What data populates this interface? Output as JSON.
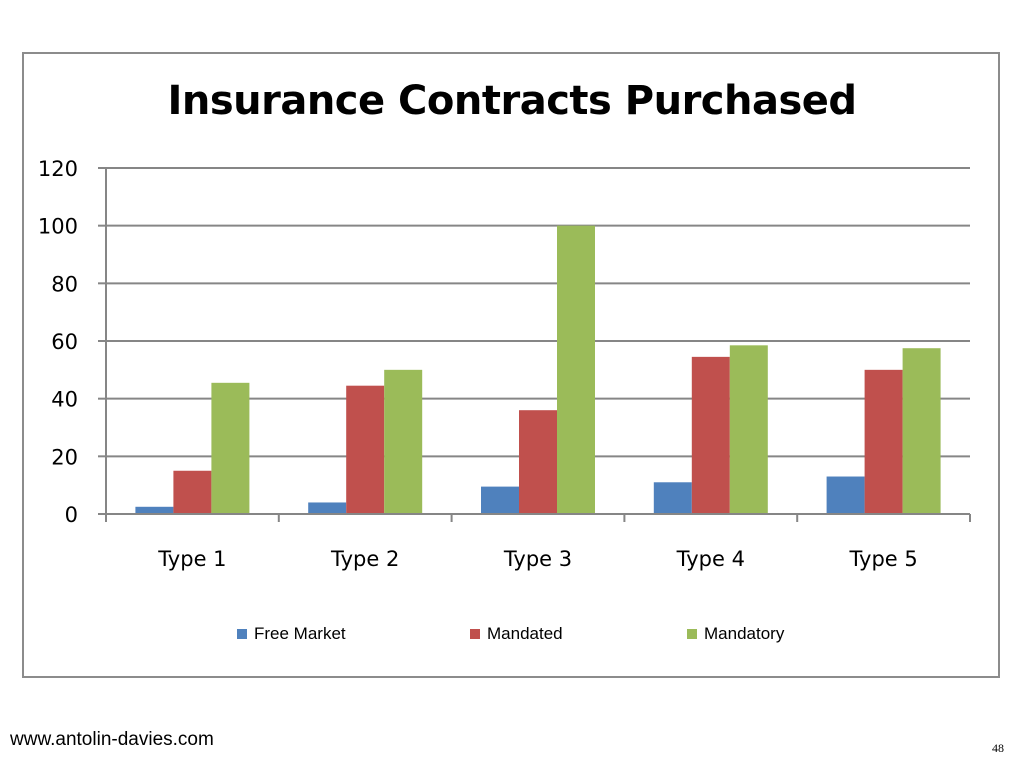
{
  "chart_data": {
    "type": "bar",
    "title": "Insurance Contracts Purchased",
    "xlabel": "",
    "ylabel": "",
    "ylim": [
      0,
      120
    ],
    "yticks": [
      0,
      20,
      40,
      60,
      80,
      100,
      120
    ],
    "categories": [
      "Type 1",
      "Type 2",
      "Type 3",
      "Type 4",
      "Type 5"
    ],
    "series": [
      {
        "name": "Free Market",
        "color": "#4f81bd",
        "values": [
          2.5,
          4,
          9.5,
          11,
          13
        ]
      },
      {
        "name": "Mandated",
        "color": "#c0504d",
        "values": [
          15,
          44.5,
          36,
          54.5,
          50
        ]
      },
      {
        "name": "Mandatory",
        "color": "#9bbb59",
        "values": [
          45.5,
          50,
          100,
          58.5,
          57.5
        ]
      }
    ],
    "grid": true,
    "legend_position": "bottom"
  },
  "footer": {
    "url": "www.antolin-davies.com",
    "page_number": "48"
  }
}
